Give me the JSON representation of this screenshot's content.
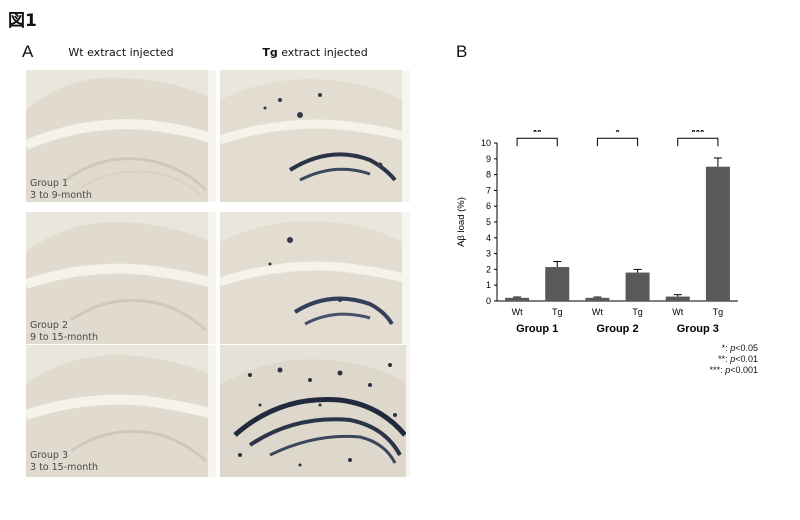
{
  "figure": {
    "title": "図1",
    "panel_a": {
      "letter": "A",
      "col_heads": [
        {
          "prefix": "Wt",
          "suffix": " extract injected"
        },
        {
          "prefix": "Tg",
          "suffix": " extract injected"
        }
      ],
      "rows": [
        {
          "group": "Group 1",
          "age": "3 to 9-month"
        },
        {
          "group": "Group 2",
          "age": "9 to 15-month"
        },
        {
          "group": "Group 3",
          "age": "3 to 15-month"
        }
      ]
    },
    "panel_b": {
      "letter": "B",
      "legend": [
        {
          "sym": "*",
          "sep": ": ",
          "p": "p",
          "thr": "<0.05"
        },
        {
          "sym": "**",
          "sep": ": ",
          "p": "p",
          "thr": "<0.01"
        },
        {
          "sym": "***",
          "sep": ": ",
          "p": "p",
          "thr": "<0.001"
        }
      ]
    }
  },
  "chart_data": {
    "type": "bar",
    "ylabel": "Aβ load (%)",
    "ylim": [
      0,
      10
    ],
    "yticks": [
      0,
      1,
      2,
      3,
      4,
      5,
      6,
      7,
      8,
      9,
      10
    ],
    "groups": [
      "Group 1",
      "Group 2",
      "Group 3"
    ],
    "categories": [
      "Wt",
      "Tg",
      "Wt",
      "Tg",
      "Wt",
      "Tg"
    ],
    "values": [
      0.2,
      2.15,
      0.2,
      1.8,
      0.28,
      8.5
    ],
    "errors": [
      0.05,
      0.35,
      0.05,
      0.2,
      0.12,
      0.55
    ],
    "bar_color": "#595959",
    "significance": [
      {
        "from": 0,
        "to": 1,
        "label": "**",
        "level": 10.3
      },
      {
        "from": 2,
        "to": 3,
        "label": "*",
        "level": 10.3
      },
      {
        "from": 4,
        "to": 5,
        "label": "***",
        "level": 10.3
      },
      {
        "from": 3,
        "to": 5,
        "label": "***",
        "level": 11.7
      },
      {
        "from": 1,
        "to": 5,
        "label": "***",
        "level": 13.4
      }
    ]
  }
}
